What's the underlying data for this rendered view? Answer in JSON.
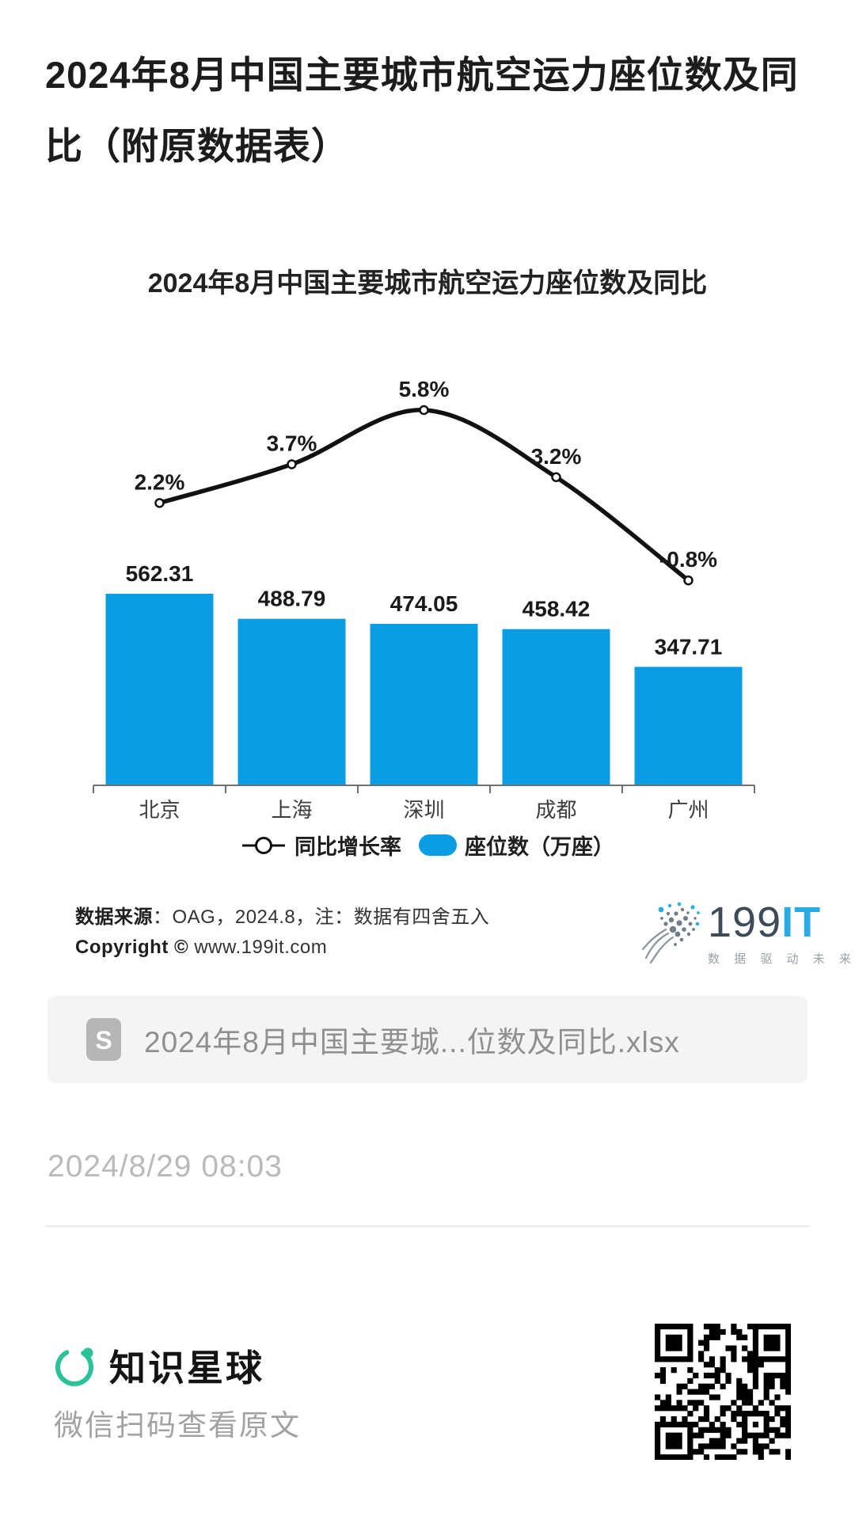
{
  "page": {
    "title": "2024年8月中国主要城市航空运力座位数及同比（附原数据表）",
    "timestamp": "2024/8/29 08:03"
  },
  "chart_data": {
    "type": "bar",
    "title": "2024年8月中国主要城市航空运力座位数及同比",
    "categories": [
      "北京",
      "上海",
      "深圳",
      "成都",
      "广州"
    ],
    "series": [
      {
        "name": "座位数（万座）",
        "type": "bar",
        "values": [
          562.31,
          488.79,
          474.05,
          458.42,
          347.71
        ],
        "color": "#0a9de4"
      },
      {
        "name": "同比增长率",
        "type": "line",
        "values": [
          2.2,
          3.7,
          5.8,
          3.2,
          -0.8
        ],
        "unit": "%",
        "color": "#111111"
      }
    ],
    "bar_value_labels": [
      "562.31",
      "488.79",
      "474.05",
      "458.42",
      "347.71"
    ],
    "line_point_labels": [
      "2.2%",
      "3.7%",
      "5.8%",
      "3.2%",
      "-0.8%"
    ],
    "legend_position": "bottom",
    "grid": false,
    "y_axis_visible": false,
    "x_axis_line": true
  },
  "legend": {
    "line_label": "同比增长率",
    "bar_label": "座位数（万座）"
  },
  "source": {
    "label_bold": "数据来源",
    "label_rest": "：OAG，2024.8，注：数据有四舍五入",
    "copyright_bold": "Copyright ©",
    "copyright_rest": " www.199it.com"
  },
  "logo_199it": {
    "text_dark": "199",
    "text_blue": "IT",
    "slogan": "数 据 驱 动 未 来"
  },
  "attachment": {
    "filename": "2024年8月中国主要城...位数及同比.xlsx"
  },
  "footer": {
    "brand": "知识星球",
    "scan_hint": "微信扫码查看原文"
  },
  "colors": {
    "bar_blue": "#0a9de4",
    "line_black": "#111111",
    "axis_gray": "#6f6f6f",
    "brand_teal": "#2bc29a",
    "it_blue": "#2aabe3"
  }
}
